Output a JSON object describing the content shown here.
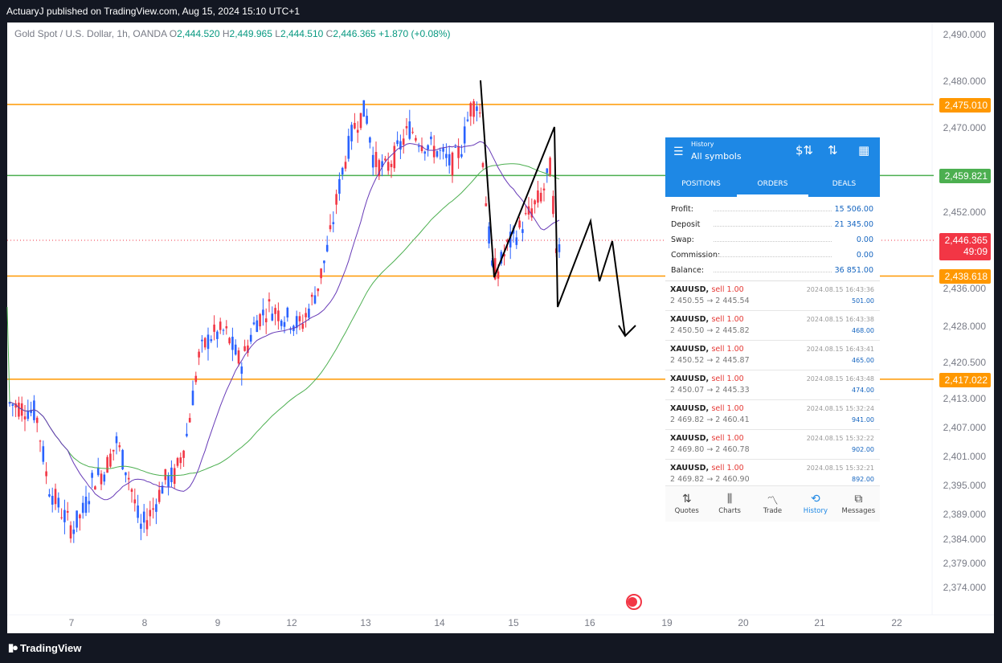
{
  "header": {
    "publisher_text": "ActuaryJ published on TradingView.com, Aug 15, 2024 15:10 UTC+1"
  },
  "legend": {
    "symbol": "Gold Spot / U.S. Dollar, 1h, OANDA",
    "o_key": "O",
    "o_val": "2,444.520",
    "h_key": "H",
    "h_val": "2,449.965",
    "l_key": "L",
    "l_val": "2,444.510",
    "c_key": "C",
    "c_val": "2,446.365",
    "change": "+1.870 (+0.08%)"
  },
  "footer": {
    "brand": "TradingView"
  },
  "colors": {
    "up": "#2962ff",
    "down": "#f23645",
    "orange": "#ff9800",
    "green": "#4caf50",
    "ma_fast": "#673ab7",
    "ma_slow": "#4caf50",
    "current": "#f23645"
  },
  "chart_data": {
    "type": "candlestick",
    "symbol": "XAUUSD",
    "timeframe": "1h",
    "y_axis_ticks": [
      "2,490.000",
      "2,480.000",
      "2,470.000",
      "2,452.000",
      "2,436.000",
      "2,428.000",
      "2,420.500",
      "2,413.000",
      "2,407.000",
      "2,401.000",
      "2,395.000",
      "2,389.000",
      "2,384.000",
      "2,379.000",
      "2,374.000"
    ],
    "x_axis_ticks": [
      "7",
      "8",
      "9",
      "12",
      "13",
      "14",
      "15",
      "16",
      "19",
      "20",
      "21",
      "22"
    ],
    "horizontal_levels": [
      {
        "price": 2475.01,
        "label": "2,475.010",
        "color": "#ff9800"
      },
      {
        "price": 2459.821,
        "label": "2,459.821",
        "color": "#4caf50"
      },
      {
        "price": 2438.618,
        "label": "2,438.618",
        "color": "#ff9800"
      },
      {
        "price": 2417.022,
        "label": "2,417.022",
        "color": "#ff9800"
      }
    ],
    "current_price": {
      "label": "2,446.365",
      "countdown": "49:09"
    },
    "ylim": [
      2370,
      2492
    ]
  },
  "mt_panel": {
    "header_sub": "History",
    "header_title": "All symbols",
    "tabs": [
      "POSITIONS",
      "ORDERS",
      "DEALS"
    ],
    "summary": [
      {
        "label": "Profit:",
        "value": "15 506.00"
      },
      {
        "label": "Deposit",
        "value": "21 345.00"
      },
      {
        "label": "Swap:",
        "value": "0.00"
      },
      {
        "label": "Commission:",
        "value": "0.00"
      },
      {
        "label": "Balance:",
        "value": "36 851.00"
      }
    ],
    "deals": [
      {
        "symbol": "XAUUSD,",
        "side": "sell 1.00",
        "prices": "2 450.55 → 2 445.54",
        "time": "2024.08.15 16:43:36",
        "pl": "501.00"
      },
      {
        "symbol": "XAUUSD,",
        "side": "sell 1.00",
        "prices": "2 450.50 → 2 445.82",
        "time": "2024.08.15 16:43:38",
        "pl": "468.00"
      },
      {
        "symbol": "XAUUSD,",
        "side": "sell 1.00",
        "prices": "2 450.52 → 2 445.87",
        "time": "2024.08.15 16:43:41",
        "pl": "465.00"
      },
      {
        "symbol": "XAUUSD,",
        "side": "sell 1.00",
        "prices": "2 450.07 → 2 445.33",
        "time": "2024.08.15 16:43:48",
        "pl": "474.00"
      },
      {
        "symbol": "XAUUSD,",
        "side": "sell 1.00",
        "prices": "2 469.82 → 2 460.41",
        "time": "2024.08.15 15:32:24",
        "pl": "941.00"
      },
      {
        "symbol": "XAUUSD,",
        "side": "sell 1.00",
        "prices": "2 469.80 → 2 460.78",
        "time": "2024.08.15 15:32:22",
        "pl": "902.00"
      },
      {
        "symbol": "XAUUSD,",
        "side": "sell 1.00",
        "prices": "2 469.82 → 2 460.90",
        "time": "2024.08.15 15:32:21",
        "pl": "892.00"
      }
    ],
    "nav": [
      {
        "label": "Quotes",
        "icon": "quotes-icon"
      },
      {
        "label": "Charts",
        "icon": "charts-icon"
      },
      {
        "label": "Trade",
        "icon": "trade-icon"
      },
      {
        "label": "History",
        "icon": "history-icon"
      },
      {
        "label": "Messages",
        "icon": "messages-icon"
      }
    ]
  }
}
